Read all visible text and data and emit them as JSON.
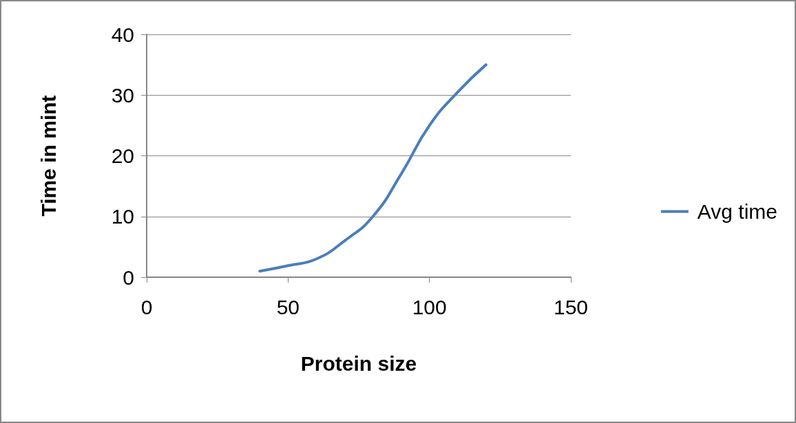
{
  "chart_data": {
    "type": "line",
    "xlabel": "Protein size",
    "ylabel": "Time in mint",
    "x": [
      40,
      50,
      60,
      70,
      80,
      90,
      100,
      110,
      120
    ],
    "series": [
      {
        "name": "Avg time",
        "color": "#4a7ebb",
        "values": [
          1,
          1.9,
          3,
          6,
          10,
          17,
          25,
          30.5,
          35
        ]
      }
    ],
    "xlim": [
      0,
      150
    ],
    "xticks": [
      0,
      50,
      100,
      150
    ],
    "ylim": [
      0,
      40
    ],
    "yticks": [
      0,
      10,
      20,
      30,
      40
    ],
    "grid": "y",
    "legend": "right",
    "marker": "none",
    "line_style": "solid"
  }
}
